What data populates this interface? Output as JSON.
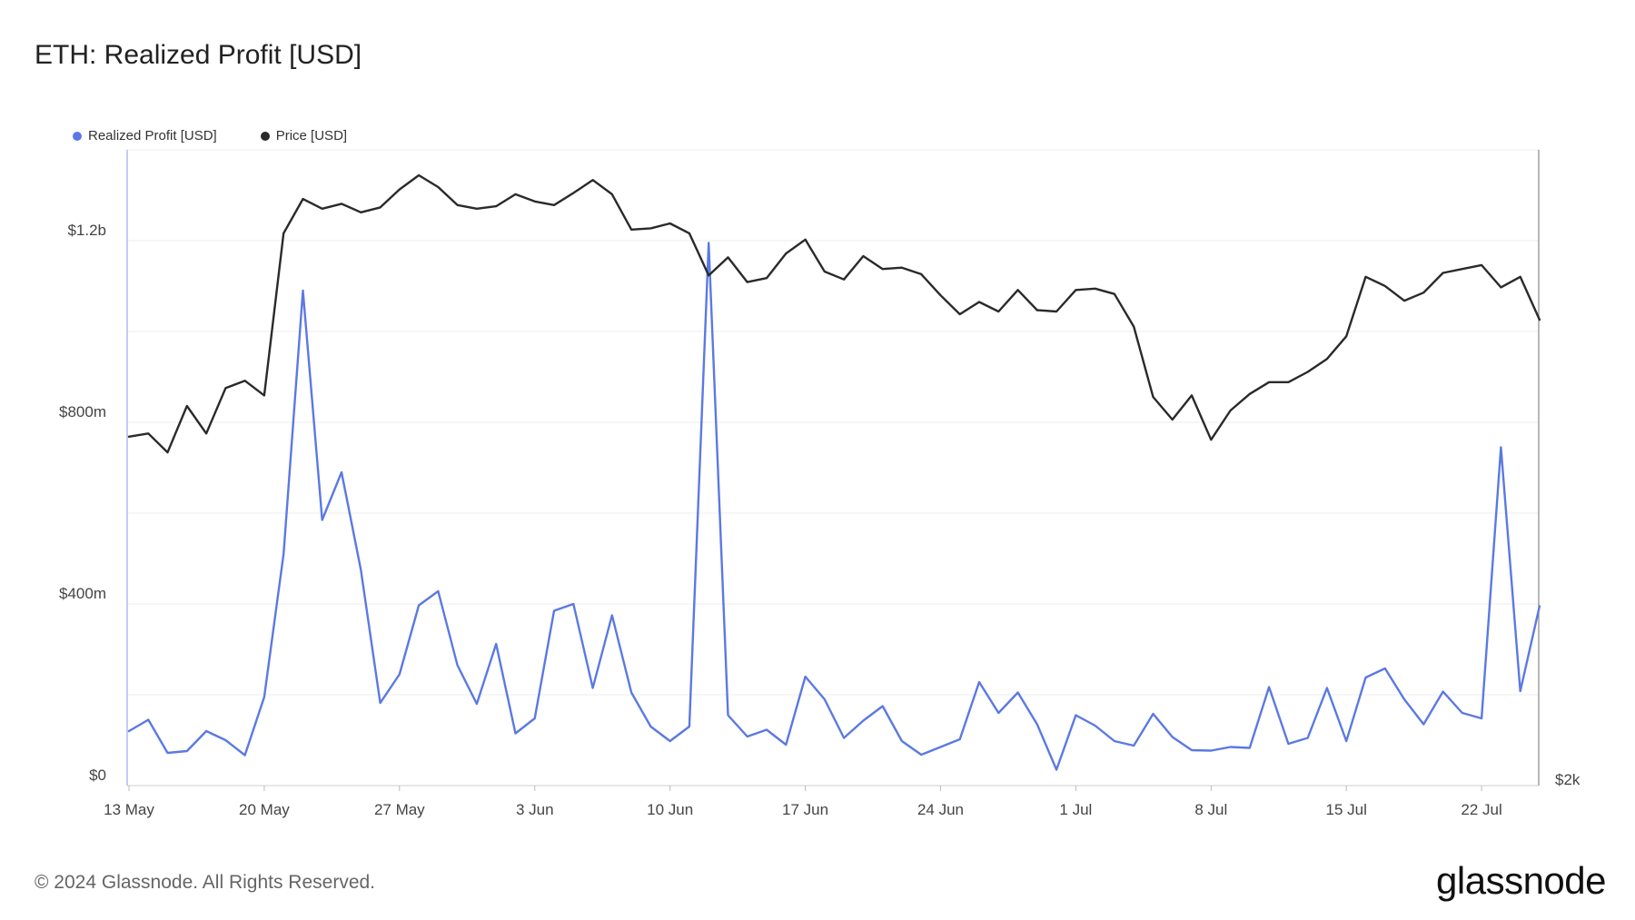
{
  "title": "ETH: Realized Profit [USD]",
  "legend": [
    {
      "label": "Realized Profit [USD]",
      "color": "#5b79e3"
    },
    {
      "label": "Price [USD]",
      "color": "#2a2a2a"
    }
  ],
  "footer": {
    "copyright": "© 2024 Glassnode. All Rights Reserved.",
    "brand": "glassnode"
  },
  "chart_data": {
    "type": "line",
    "x_range": [
      "2024-05-13",
      "2024-07-24"
    ],
    "x_ticks": [
      "13 May",
      "20 May",
      "27 May",
      "3 Jun",
      "10 Jun",
      "17 Jun",
      "24 Jun",
      "1 Jul",
      "8 Jul",
      "15 Jul",
      "22 Jul"
    ],
    "y_left": {
      "label": "",
      "ticks": [
        "$0",
        "$400m",
        "$800m",
        "$1.2b"
      ],
      "ylim": [
        0,
        1400000000
      ]
    },
    "y_right": {
      "label": "",
      "ticks": [
        "$2k"
      ],
      "scale": "log"
    },
    "grid": true,
    "legend_position": "top-left",
    "series": [
      {
        "name": "Realized Profit [USD]",
        "color": "#5b79e3",
        "axis": "left",
        "values": [
          120000000,
          145000000,
          72000000,
          76000000,
          120000000,
          100000000,
          67000000,
          195000000,
          510000000,
          1090000000,
          585000000,
          690000000,
          475000000,
          182000000,
          245000000,
          397000000,
          428000000,
          265000000,
          180000000,
          312000000,
          115000000,
          148000000,
          385000000,
          400000000,
          215000000,
          375000000,
          205000000,
          130000000,
          98000000,
          130000000,
          1195000000,
          155000000,
          108000000,
          123000000,
          90000000,
          240000000,
          190000000,
          105000000,
          143000000,
          175000000,
          98000000,
          68000000,
          85000000,
          102000000,
          228000000,
          160000000,
          205000000,
          135000000,
          35000000,
          155000000,
          132000000,
          98000000,
          88000000,
          158000000,
          107000000,
          78000000,
          77000000,
          85000000,
          83000000,
          217000000,
          92000000,
          105000000,
          215000000,
          98000000,
          238000000,
          258000000,
          190000000,
          135000000,
          207000000,
          160000000,
          148000000,
          745000000,
          208000000,
          395000000
        ]
      },
      {
        "name": "Price [USD]",
        "color": "#2a2a2a",
        "axis": "right",
        "values": [
          2930,
          2940,
          2880,
          3030,
          2940,
          3090,
          3115,
          3065,
          3660,
          3800,
          3760,
          3780,
          3745,
          3765,
          3840,
          3900,
          3850,
          3775,
          3760,
          3770,
          3820,
          3790,
          3775,
          3825,
          3880,
          3820,
          3675,
          3680,
          3700,
          3660,
          3495,
          3565,
          3470,
          3485,
          3580,
          3635,
          3510,
          3480,
          3570,
          3520,
          3525,
          3500,
          3420,
          3350,
          3395,
          3360,
          3440,
          3365,
          3360,
          3440,
          3445,
          3425,
          3305,
          3060,
          2985,
          3065,
          2920,
          3015,
          3070,
          3110,
          3110,
          3145,
          3190,
          3270,
          3490,
          3455,
          3400,
          3430,
          3505,
          3520,
          3535,
          3450,
          3490,
          3330
        ]
      }
    ]
  }
}
